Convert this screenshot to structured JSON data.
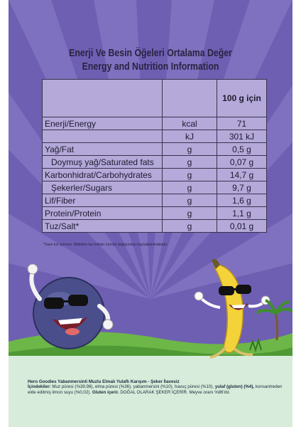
{
  "title_tr": "Enerji Ve Besin Öğeleri Ortalama Değer",
  "title_en": "Energy and Nutrition Information",
  "column_header": "100 g için",
  "rows": [
    {
      "name": "Enerji/Energy",
      "unit": "kcal",
      "value": "71",
      "indent": false
    },
    {
      "name": "",
      "unit": "kJ",
      "value": "301 kJ",
      "indent": false
    },
    {
      "name": "Yağ/Fat",
      "unit": "g",
      "value": "0,5  g",
      "indent": false
    },
    {
      "name": "Doymuş yağ/Saturated fats",
      "unit": "g",
      "value": "0,07 g",
      "indent": true
    },
    {
      "name": "Karbonhidrat/Carbohydrates",
      "unit": "g",
      "value": "14,7 g",
      "indent": false
    },
    {
      "name": "Şekerler/Sugars",
      "unit": "g",
      "value": "9,7  g",
      "indent": true
    },
    {
      "name": "Lif/Fiber",
      "unit": "g",
      "value": "1,6  g",
      "indent": false
    },
    {
      "name": "Protein/Protein",
      "unit": "g",
      "value": "1,1  g",
      "indent": false
    },
    {
      "name": "Tuz/Salt*",
      "unit": "g",
      "value": "0,01 g",
      "indent": false
    }
  ],
  "footnote": "*Save tuz içermez. Bildirilen tuz miktarı ürünün doğasından kaynaklanmaktadır.",
  "product_name": "Hero Goodies Yabanmersinli Muzlu Elmalı Yulaflı Karışım - Şeker İlavesiz",
  "ingredients_label": "İçindekiler:",
  "ingredients_text": "Muz püresi (%39,98), elma püresi (%36), yabanmersini (%10), havuç püresi (%10),",
  "oat_label": "yulaf (gluten) (%4),",
  "ingredients_text2": "konsantreden elde edilmiş limon suyu (%0,02).",
  "gluten_label": "Gluten içerir.",
  "ingredients_text3": "DOĞAL OLARAK ŞEKER İÇERİR. Meyve oranı %86'dır.",
  "colors": {
    "background": "#7566b8",
    "table": "#b4a9d9",
    "grass": "#5fae3b"
  }
}
